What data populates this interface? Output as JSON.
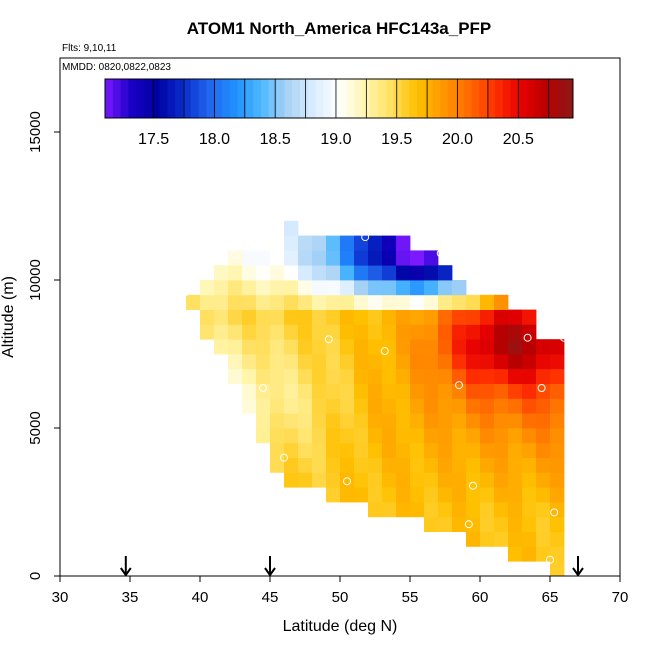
{
  "chart_data": {
    "type": "heatmap",
    "title": "ATOM1 North_America HFC143a_PFP",
    "subtitle_flights": "Flts: 9,10,11",
    "subtitle_dates": "MMDD: 0820,0822,0823",
    "xlabel": "Latitude (deg N)",
    "ylabel": "Altitude (m)",
    "xlim": [
      30,
      70
    ],
    "ylim": [
      0,
      17500
    ],
    "x_ticks": [
      "30",
      "35",
      "40",
      "45",
      "50",
      "55",
      "60",
      "65",
      "70"
    ],
    "x_tick_values": [
      30,
      35,
      40,
      45,
      50,
      55,
      60,
      65,
      70
    ],
    "y_ticks": [
      "0",
      "5000",
      "10000",
      "15000"
    ],
    "y_tick_values": [
      0,
      5000,
      10000,
      15000
    ],
    "colorbar": {
      "min": 17.1,
      "max": 20.95,
      "tick_labels": [
        "17.5",
        "18.0",
        "18.5",
        "19.0",
        "19.5",
        "20.0",
        "20.5"
      ],
      "tick_values": [
        17.5,
        18.0,
        18.5,
        19.0,
        19.5,
        20.0,
        20.5
      ]
    },
    "flight_markers_lat": [
      34.7,
      45.0,
      67.0
    ],
    "grid_lat_step": 1.0,
    "grid_alt_step": 500,
    "grid_rows": [
      {
        "alt": 500,
        "lat_min": 65.0,
        "lat_max": 66.0
      },
      {
        "alt": 1000,
        "lat_min": 62.0,
        "lat_max": 66.0
      },
      {
        "alt": 1500,
        "lat_min": 59.0,
        "lat_max": 66.0
      },
      {
        "alt": 2000,
        "lat_min": 56.0,
        "lat_max": 66.0
      },
      {
        "alt": 2500,
        "lat_min": 52.0,
        "lat_max": 66.0
      },
      {
        "alt": 3000,
        "lat_min": 49.0,
        "lat_max": 66.0
      },
      {
        "alt": 3500,
        "lat_min": 46.0,
        "lat_max": 66.0
      },
      {
        "alt": 4000,
        "lat_min": 45.0,
        "lat_max": 66.0
      },
      {
        "alt": 4500,
        "lat_min": 45.0,
        "lat_max": 66.0
      },
      {
        "alt": 5000,
        "lat_min": 44.0,
        "lat_max": 66.0
      },
      {
        "alt": 5500,
        "lat_min": 44.0,
        "lat_max": 66.0
      },
      {
        "alt": 6000,
        "lat_min": 43.0,
        "lat_max": 66.0
      },
      {
        "alt": 6500,
        "lat_min": 43.0,
        "lat_max": 66.0
      },
      {
        "alt": 7000,
        "lat_min": 42.0,
        "lat_max": 66.0
      },
      {
        "alt": 7500,
        "lat_min": 42.0,
        "lat_max": 66.0
      },
      {
        "alt": 8000,
        "lat_min": 41.0,
        "lat_max": 66.0
      },
      {
        "alt": 8500,
        "lat_min": 40.0,
        "lat_max": 64.0
      },
      {
        "alt": 9000,
        "lat_min": 40.0,
        "lat_max": 64.0
      },
      {
        "alt": 9500,
        "lat_min": 39.0,
        "lat_max": 62.0
      },
      {
        "alt": 10000,
        "lat_min": 40.0,
        "lat_max": 59.0
      },
      {
        "alt": 10500,
        "lat_min": 41.0,
        "lat_max": 58.0
      },
      {
        "alt": 11000,
        "lat_min": 42.0,
        "lat_max": 57.0
      },
      {
        "alt": 11500,
        "lat_min": 45.0,
        "lat_max": 55.0
      },
      {
        "alt": 12000,
        "lat_min": 46.0,
        "lat_max": 47.0
      }
    ],
    "value_model": {
      "max_value": 20.9,
      "max_center_lat": 62.5,
      "max_center_alt": 8000,
      "low_value": 17.3,
      "low_center_lat": 56.0,
      "low_center_alt": 11000
    },
    "sample_points": [
      {
        "lat": 42.5,
        "alt": 10850
      },
      {
        "lat": 51.8,
        "alt": 11450
      },
      {
        "lat": 57.2,
        "alt": 10900
      },
      {
        "lat": 39.0,
        "alt": 9600
      },
      {
        "lat": 49.2,
        "alt": 8000
      },
      {
        "lat": 63.4,
        "alt": 8050
      },
      {
        "lat": 66.0,
        "alt": 8050
      },
      {
        "lat": 53.2,
        "alt": 7600
      },
      {
        "lat": 44.5,
        "alt": 6350
      },
      {
        "lat": 58.5,
        "alt": 6450
      },
      {
        "lat": 64.4,
        "alt": 6350
      },
      {
        "lat": 46.0,
        "alt": 4000
      },
      {
        "lat": 50.5,
        "alt": 3200
      },
      {
        "lat": 59.5,
        "alt": 3050
      },
      {
        "lat": 65.3,
        "alt": 2150
      },
      {
        "lat": 59.2,
        "alt": 1750
      },
      {
        "lat": 65.0,
        "alt": 550
      }
    ]
  },
  "palette": [
    "#7b1aff",
    "#1a00c8",
    "#0000a0",
    "#0a2ccd",
    "#2266ee",
    "#1f8fff",
    "#4db8ff",
    "#a9d2f5",
    "#d8ecff",
    "#ffffff",
    "#fff6b0",
    "#ffe060",
    "#ffc000",
    "#ff9800",
    "#ff6a00",
    "#ff3000",
    "#e60000",
    "#b80000",
    "#8b1a1a"
  ]
}
